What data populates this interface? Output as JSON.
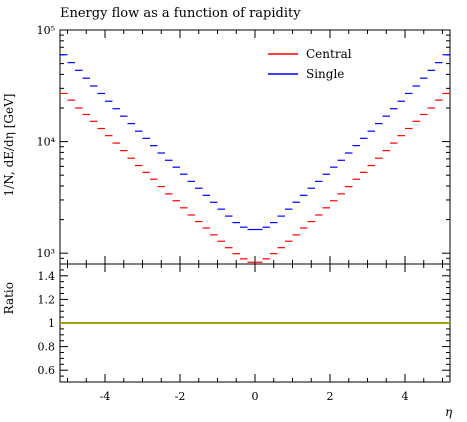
{
  "chart_data": {
    "type": "line",
    "title": "Energy flow as a function of rapidity",
    "xlabel": "η",
    "ylabel": "1/N, dE/dη [GeV]",
    "ratio_label": "Ratio",
    "xlim": [
      -5.2,
      5.2
    ],
    "ylim_log": [
      800,
      100000
    ],
    "y_scale": "log",
    "ratio_ylim": [
      0.5,
      1.5
    ],
    "x_ticks": [
      -4,
      -2,
      0,
      2,
      4
    ],
    "x_tick_labels": [
      "-4",
      "-2",
      "0",
      "2",
      "4"
    ],
    "y_tick_labels": [
      "10³",
      "10⁴",
      "10⁵"
    ],
    "ratio_ticks": [
      0.6,
      0.8,
      1,
      1.2,
      1.4
    ],
    "ratio_tick_labels": [
      "0.6",
      "0.8",
      "1",
      "1.2",
      "1.4"
    ],
    "legend": {
      "position": "top-right"
    },
    "x": [
      -5.1,
      -4.9,
      -4.7,
      -4.5,
      -4.3,
      -4.1,
      -3.9,
      -3.7,
      -3.5,
      -3.3,
      -3.1,
      -2.9,
      -2.7,
      -2.5,
      -2.3,
      -2.1,
      -1.9,
      -1.7,
      -1.5,
      -1.3,
      -1.1,
      -0.9,
      -0.7,
      -0.5,
      -0.3,
      -0.1,
      0.1,
      0.3,
      0.5,
      0.7,
      0.9,
      1.1,
      1.3,
      1.5,
      1.7,
      1.9,
      2.1,
      2.3,
      2.5,
      2.7,
      2.9,
      3.1,
      3.3,
      3.5,
      3.7,
      3.9,
      4.1,
      4.3,
      4.5,
      4.7,
      4.9,
      5.1
    ],
    "series": [
      {
        "name": "Central",
        "color": "#ff0000",
        "values": [
          27000,
          23500,
          20000,
          17500,
          15200,
          13100,
          11300,
          9700,
          8300,
          7100,
          6100,
          5300,
          4600,
          3950,
          3400,
          2950,
          2550,
          2200,
          1920,
          1680,
          1460,
          1280,
          1120,
          990,
          890,
          830,
          830,
          890,
          990,
          1120,
          1280,
          1460,
          1680,
          1920,
          2200,
          2550,
          2950,
          3400,
          3950,
          4600,
          5300,
          6100,
          7100,
          8300,
          9700,
          11300,
          13100,
          15200,
          17500,
          20000,
          23500,
          27000
        ]
      },
      {
        "name": "Single",
        "color": "#0000ff",
        "values": [
          60000,
          51000,
          43500,
          37000,
          31500,
          27000,
          23000,
          19700,
          16900,
          14500,
          12400,
          10700,
          9200,
          7900,
          6800,
          5900,
          5100,
          4400,
          3820,
          3300,
          2860,
          2480,
          2150,
          1880,
          1710,
          1630,
          1630,
          1710,
          1880,
          2150,
          2480,
          2860,
          3300,
          3820,
          4400,
          5100,
          5900,
          6800,
          7900,
          9200,
          10700,
          12400,
          14500,
          16900,
          19700,
          23000,
          27000,
          31500,
          37000,
          43500,
          51000,
          60000
        ]
      }
    ],
    "ratio_series": {
      "name": "Single",
      "color": "#a0a000",
      "value": 1
    }
  }
}
